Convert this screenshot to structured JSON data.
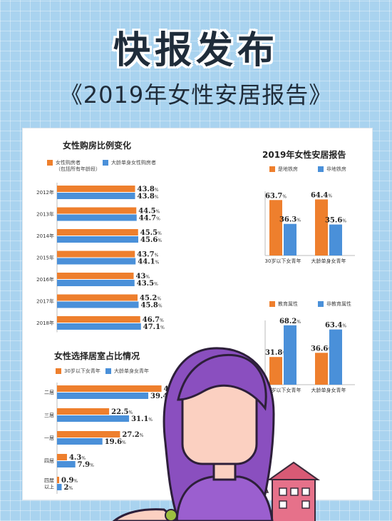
{
  "header": {
    "headline": "快报发布",
    "subtitle": "《2019年女性安居报告》"
  },
  "colors": {
    "orange": "#ee7f2d",
    "blue": "#4a90d9",
    "background": "#a9d3ef"
  },
  "chart_data": [
    {
      "type": "bar",
      "orientation": "horizontal",
      "title": "女性购房比例变化",
      "categories": [
        "2012年",
        "2013年",
        "2014年",
        "2015年",
        "2016年",
        "2017年",
        "2018年"
      ],
      "series": [
        {
          "name": "女性购房者\n（包括所有年龄段）",
          "values": [
            43.8,
            44.5,
            45.5,
            43.7,
            43,
            45.2,
            46.7
          ]
        },
        {
          "name": "大龄单身女性购房者",
          "values": [
            43.8,
            44.7,
            45.6,
            44.1,
            43.5,
            45.8,
            47.1
          ]
        }
      ],
      "value_labels": [
        [
          "43.8",
          "44.5",
          "45.5",
          "43.7",
          "43",
          "45.2",
          "46.7"
        ],
        [
          "43.8",
          "44.7",
          "45.6",
          "44.1",
          "43.5",
          "45.8",
          "47.1"
        ]
      ],
      "unit": "%"
    },
    {
      "type": "bar",
      "orientation": "horizontal",
      "title": "女性选择居室占比情况",
      "categories": [
        "二居",
        "三居",
        "一居",
        "四居",
        "四居\n以上"
      ],
      "series": [
        {
          "name": "30岁以下女青年",
          "values": [
            45.1,
            22.5,
            27.2,
            4.3,
            0.9
          ]
        },
        {
          "name": "大龄单身女青年",
          "values": [
            39.4,
            31.1,
            19.6,
            7.9,
            2
          ]
        }
      ],
      "value_labels": [
        [
          "45.1",
          "22.5",
          "27.2",
          "4.3",
          "0.9"
        ],
        [
          "39.4",
          "31.1",
          "19.6",
          "7.9",
          "2"
        ]
      ],
      "unit": "%"
    },
    {
      "type": "bar",
      "title": "2019年女性安居报告",
      "categories": [
        "30岁以下女青年",
        "大龄单身女青年"
      ],
      "series": [
        {
          "name": "是地铁房",
          "values": [
            63.7,
            64.4
          ]
        },
        {
          "name": "非地铁房",
          "values": [
            36.3,
            35.6
          ]
        }
      ],
      "value_labels": [
        [
          "63.7",
          "64.4"
        ],
        [
          "36.3",
          "35.6"
        ]
      ],
      "unit": "%"
    },
    {
      "type": "bar",
      "title": "",
      "categories": [
        "30岁以下女青年",
        "大龄单身女青年"
      ],
      "series": [
        {
          "name": "教育属性",
          "values": [
            31.8,
            36.6
          ]
        },
        {
          "name": "非教育属性",
          "values": [
            68.2,
            63.4
          ]
        }
      ],
      "value_labels": [
        [
          "31.8",
          "36.6"
        ],
        [
          "68.2",
          "63.4"
        ]
      ],
      "unit": "%"
    }
  ]
}
